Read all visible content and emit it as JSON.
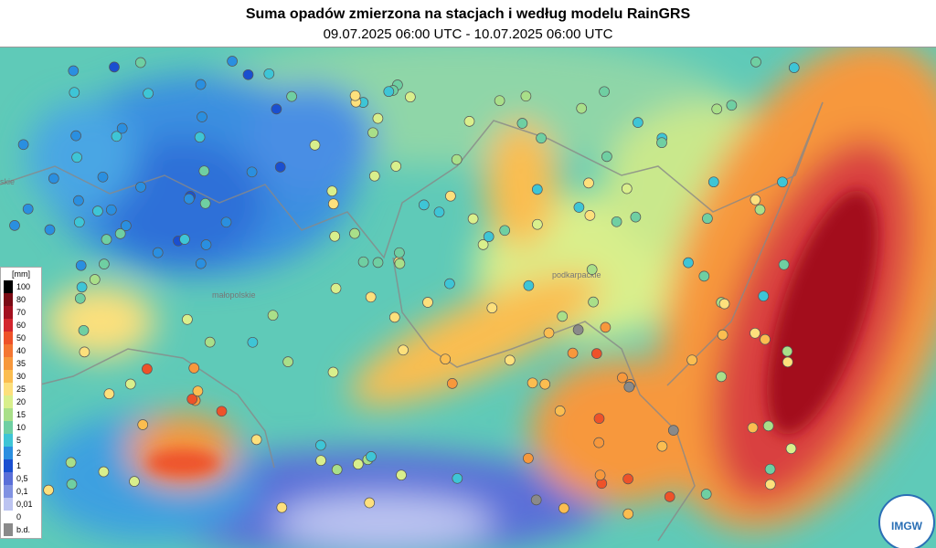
{
  "header": {
    "title": "Suma opadów zmierzona na stacjach i według modelu RainGRS",
    "subtitle": "09.07.2025 06:00 UTC - 10.07.2025 06:00 UTC"
  },
  "regions": [
    {
      "label": "małopolskie"
    },
    {
      "label": "podkarpackie"
    },
    {
      "label": "skie"
    }
  ],
  "legend": {
    "title": "[mm]",
    "items": [
      {
        "label": "100",
        "color": "#000000"
      },
      {
        "label": "80",
        "color": "#7a0a14"
      },
      {
        "label": "70",
        "color": "#a3101f"
      },
      {
        "label": "60",
        "color": "#d3262e"
      },
      {
        "label": "50",
        "color": "#ee5229"
      },
      {
        "label": "40",
        "color": "#f47632"
      },
      {
        "label": "35",
        "color": "#f7983c"
      },
      {
        "label": "30",
        "color": "#fbbd50"
      },
      {
        "label": "25",
        "color": "#fde07c"
      },
      {
        "label": "20",
        "color": "#d9ef8c"
      },
      {
        "label": "15",
        "color": "#a9df89"
      },
      {
        "label": "10",
        "color": "#6fcfa2"
      },
      {
        "label": "5",
        "color": "#3ec5d6"
      },
      {
        "label": "2",
        "color": "#2a8fe0"
      },
      {
        "label": "1",
        "color": "#1a4fd0"
      },
      {
        "label": "0,5",
        "color": "#5a6fd8"
      },
      {
        "label": "0,1",
        "color": "#8192e2"
      },
      {
        "label": "0,01",
        "color": "#bcc4f1"
      },
      {
        "label": "0",
        "color": "#ffffff"
      },
      {
        "label": "b.d.",
        "color": "#8a8a8a"
      }
    ]
  },
  "logo": {
    "label": "IMGW"
  }
}
